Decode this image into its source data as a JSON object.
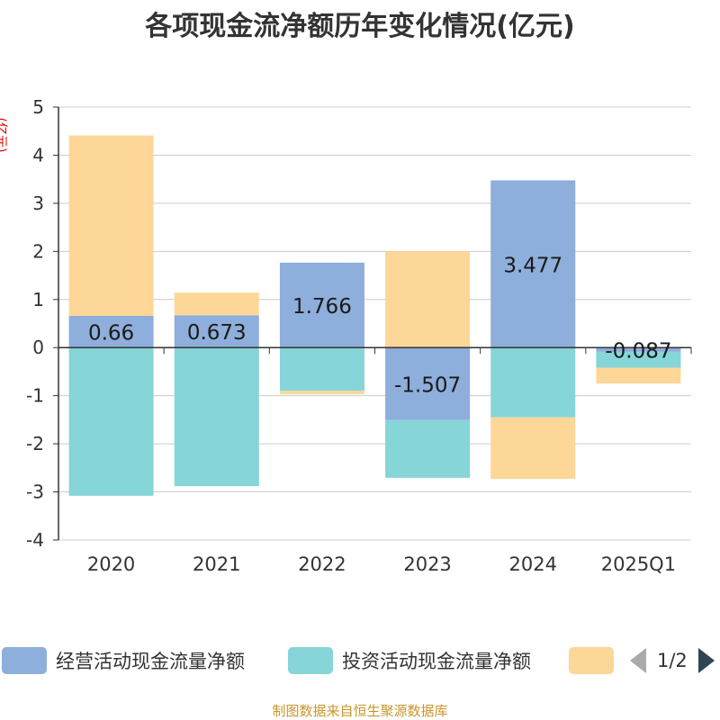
{
  "title": "各项现金流净额历年变化情况(亿元)",
  "unit_label": "(亿元)",
  "source": "制图数据来自恒生聚源数据库",
  "legend": {
    "items": [
      {
        "label": "经营活动现金流量净额",
        "color": "#8eaedb"
      },
      {
        "label": "投资活动现金流量净额",
        "color": "#86d5d8"
      },
      {
        "label": "",
        "color": "#fdd797"
      }
    ],
    "page": "1/2"
  },
  "chart_data": {
    "type": "bar",
    "stacked": true,
    "categories": [
      "2020",
      "2021",
      "2022",
      "2023",
      "2024",
      "2025Q1"
    ],
    "ylim": [
      -4,
      5
    ],
    "yticks": [
      5,
      4,
      3,
      2,
      1,
      0,
      -1,
      -2,
      -3,
      -4
    ],
    "series": [
      {
        "name": "经营活动现金流量净额",
        "color": "#8eaedb",
        "values": [
          0.66,
          0.673,
          1.766,
          -1.507,
          3.477,
          -0.087
        ],
        "labels": [
          "0.66",
          "0.673",
          "1.766",
          "-1.507",
          "3.477",
          "-0.087"
        ]
      },
      {
        "name": "投资活动现金流量净额",
        "color": "#86d5d8",
        "values": [
          -3.08,
          -2.88,
          -0.9,
          -1.2,
          -1.45,
          -0.33
        ]
      },
      {
        "name": "",
        "color": "#fdd797",
        "values": [
          3.75,
          0.47,
          -0.07,
          2.0,
          -1.28,
          -0.33
        ]
      }
    ]
  }
}
